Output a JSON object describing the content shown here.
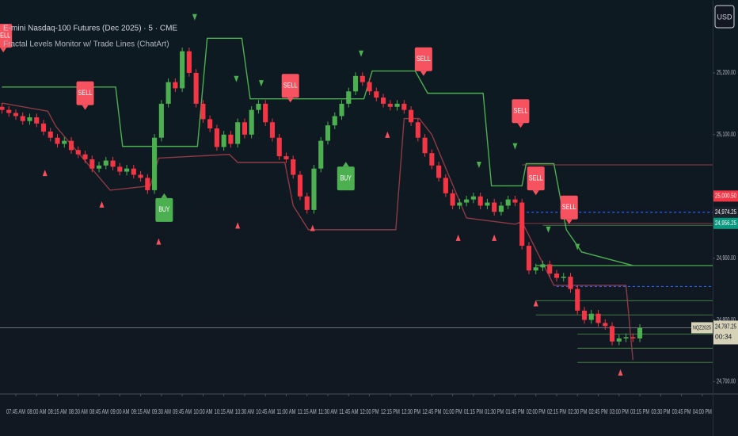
{
  "chart_data": {
    "type": "candlestick",
    "title": "E-mini Nasdaq-100 Futures (Dec 2025) · 5 · CME",
    "subtitle": "Fractal Levels Monitor w/ Trade Lines (ChatArt)",
    "currency": "USD",
    "up_color": "#4caf50",
    "down_color": "#f23645",
    "x": [
      455,
      460,
      465,
      470,
      475,
      480,
      485,
      490,
      495,
      500,
      505,
      510,
      515,
      520,
      525,
      530,
      535,
      540,
      545,
      550,
      555,
      560,
      565,
      570,
      575,
      580,
      585,
      590,
      595,
      600,
      605,
      610,
      615,
      620,
      625,
      630,
      635,
      640,
      645,
      650,
      655,
      660,
      665,
      670,
      675,
      680,
      685,
      690,
      695,
      700,
      705,
      710,
      715,
      720,
      725,
      730,
      735,
      740,
      745,
      750,
      755,
      760,
      765,
      770,
      775,
      780,
      785,
      790,
      795,
      800,
      805,
      810,
      815,
      820,
      825,
      830,
      835,
      840,
      845,
      850,
      855,
      860,
      865,
      870,
      875,
      880,
      885,
      890,
      895,
      900,
      905,
      910,
      915
    ],
    "open": [
      25145,
      25140,
      25135,
      25130,
      25122,
      25128,
      25118,
      25105,
      25095,
      25085,
      25090,
      25075,
      25068,
      25060,
      25045,
      25050,
      25058,
      25048,
      25040,
      25045,
      25035,
      25030,
      25010,
      25095,
      25150,
      25185,
      25175,
      25235,
      25200,
      25150,
      25125,
      25110,
      25080,
      25100,
      25085,
      25120,
      25100,
      25140,
      25150,
      25120,
      25095,
      25065,
      25060,
      25035,
      25000,
      24978,
      25045,
      25090,
      25115,
      25130,
      25150,
      25170,
      25195,
      25185,
      25170,
      25160,
      25150,
      25145,
      25150,
      25140,
      25120,
      25095,
      25070,
      25050,
      25030,
      25005,
      24985,
      24990,
      24995,
      25000,
      24985,
      24990,
      24975,
      24985,
      24995,
      24990,
      24920,
      24880,
      24885,
      24890,
      24875,
      24868,
      24870,
      24850,
      24815,
      24800,
      24810,
      24795,
      24790,
      24765,
      24770,
      24772,
      24770
    ],
    "high": [
      25151,
      25146,
      25141,
      25136,
      25134,
      25134,
      25124,
      25111,
      25101,
      25096,
      25096,
      25081,
      25074,
      25066,
      25056,
      25064,
      25064,
      25054,
      25051,
      25051,
      25041,
      25036,
      25101,
      25156,
      25191,
      25191,
      25241,
      25241,
      25206,
      25156,
      25131,
      25116,
      25106,
      25106,
      25126,
      25126,
      25146,
      25156,
      25156,
      25126,
      25101,
      25071,
      25066,
      25041,
      25006,
      25051,
      25096,
      25121,
      25136,
      25156,
      25176,
      25201,
      25201,
      25191,
      25176,
      25166,
      25156,
      25156,
      25156,
      25146,
      25126,
      25101,
      25076,
      25056,
      25036,
      25011,
      24996,
      25001,
      25006,
      25006,
      24996,
      24996,
      24991,
      25001,
      25001,
      24996,
      24926,
      24891,
      24896,
      24896,
      24881,
      24876,
      24876,
      24856,
      24821,
      24816,
      24816,
      24801,
      24796,
      24776,
      24778,
      24778,
      24793
    ],
    "low": [
      25134,
      25129,
      25124,
      25116,
      25116,
      25112,
      25099,
      25089,
      25079,
      25079,
      25069,
      25062,
      25054,
      25039,
      25039,
      25044,
      25042,
      25034,
      25034,
      25029,
      25024,
      25004,
      25004,
      25089,
      25144,
      25169,
      25169,
      25194,
      25144,
      25119,
      25104,
      25074,
      25074,
      25079,
      25079,
      25094,
      25094,
      25134,
      25114,
      25089,
      25059,
      25054,
      25029,
      24994,
      24972,
      24972,
      25039,
      25084,
      25109,
      25124,
      25144,
      25164,
      25179,
      25164,
      25154,
      25144,
      25139,
      25139,
      25134,
      25114,
      25089,
      25064,
      25044,
      25024,
      24999,
      24979,
      24979,
      24984,
      24989,
      24979,
      24979,
      24969,
      24969,
      24979,
      24984,
      24914,
      24874,
      24874,
      24879,
      24869,
      24862,
      24862,
      24844,
      24809,
      24794,
      24794,
      24789,
      24784,
      24759,
      24759,
      24764,
      24764,
      24764
    ],
    "close": [
      25140,
      25135,
      25130,
      25122,
      25128,
      25118,
      25105,
      25095,
      25085,
      25090,
      25075,
      25068,
      25060,
      25045,
      25050,
      25058,
      25048,
      25040,
      25045,
      25035,
      25030,
      25010,
      25095,
      25150,
      25185,
      25175,
      25235,
      25200,
      25150,
      25125,
      25110,
      25080,
      25100,
      25085,
      25120,
      25100,
      25140,
      25150,
      25120,
      25095,
      25065,
      25060,
      25035,
      25000,
      24978,
      25045,
      25090,
      25115,
      25130,
      25150,
      25170,
      25195,
      25185,
      25170,
      25160,
      25150,
      25145,
      25150,
      25140,
      25120,
      25095,
      25070,
      25050,
      25030,
      25005,
      24985,
      24990,
      24995,
      25000,
      24985,
      24990,
      24975,
      24985,
      24995,
      24990,
      24920,
      24880,
      24885,
      24890,
      24875,
      24868,
      24870,
      24850,
      24815,
      24800,
      24810,
      24795,
      24790,
      24765,
      24770,
      24772,
      24770,
      24787
    ],
    "lines": [
      {
        "color": "#4caf50",
        "x": [
          455,
          537,
          542,
          596,
          603,
          628,
          634,
          716,
          722,
          753,
          762,
          802,
          808,
          830,
          833,
          853,
          862,
          873,
          910
        ],
        "values": [
          25177,
          25177,
          25081,
          25081,
          25256,
          25256,
          25158,
          25158,
          25203,
          25203,
          25167,
          25167,
          25017,
          25017,
          25053,
          25053,
          24946,
          24910,
          24888
        ]
      },
      {
        "color": "#8e3a44",
        "x": [
          455,
          488,
          494,
          533,
          562,
          568,
          619,
          625,
          659,
          665,
          676,
          739,
          745,
          756,
          765,
          790,
          825,
          830,
          853,
          905,
          910
        ],
        "values": [
          25151,
          25138,
          25113,
          25010,
          25017,
          25062,
          25068,
          25055,
          25055,
          24985,
          24946,
          24946,
          25126,
          25126,
          25100,
          24965,
          24955,
          24959,
          24856,
          24856,
          24735
        ]
      }
    ],
    "fractal_highs": {
      "color": "#4caf50",
      "x": [
        594,
        624,
        642,
        714,
        799,
        825,
        849,
        870
      ],
      "values": [
        25290,
        25190,
        25183,
        25231,
        25051,
        25081,
        24946,
        24918
      ]
    },
    "fractal_lows": {
      "color": "#f7525f",
      "x": [
        486,
        527,
        568,
        625,
        679,
        733,
        784,
        810,
        840,
        901
      ],
      "values": [
        25038,
        24987,
        24927,
        24953,
        24949,
        25100,
        24933,
        24933,
        24827,
        24715
      ]
    },
    "signals": [
      {
        "label": "SELL",
        "x": 456,
        "value": 25260,
        "color": "#f7525f"
      },
      {
        "label": "SELL",
        "x": 515,
        "value": 25167,
        "color": "#f7525f"
      },
      {
        "label": "BUY",
        "x": 572,
        "value": 24978,
        "color": "#4caf50"
      },
      {
        "label": "SELL",
        "x": 663,
        "value": 25179,
        "color": "#f7525f"
      },
      {
        "label": "BUY",
        "x": 703,
        "value": 25029,
        "color": "#4caf50"
      },
      {
        "label": "SELL",
        "x": 759,
        "value": 25222,
        "color": "#f7525f"
      },
      {
        "label": "SELL",
        "x": 829,
        "value": 25138,
        "color": "#f7525f"
      },
      {
        "label": "SELL",
        "x": 840,
        "value": 25029,
        "color": "#f7525f"
      },
      {
        "label": "SELL",
        "x": 864,
        "value": 24982,
        "color": "#f7525f"
      }
    ],
    "levels": [
      {
        "x": 830,
        "value": 25051,
        "color": "#7a3440",
        "dashed": false
      },
      {
        "x": 830,
        "value": 24974.25,
        "color": "#2962ff",
        "dashed": true
      },
      {
        "x": 830,
        "value": 24956.25,
        "color": "#7a3440",
        "dashed": false
      },
      {
        "x": 845,
        "value": 24953,
        "color": "#3d6b40",
        "dashed": false
      },
      {
        "x": 840,
        "value": 24888,
        "color": "#4caf50",
        "dashed": false
      },
      {
        "x": 855,
        "value": 24854,
        "color": "#2962ff",
        "dashed": true
      },
      {
        "x": 840,
        "value": 24831,
        "color": "#3d6b40",
        "dashed": false
      },
      {
        "x": 840,
        "value": 24808,
        "color": "#3d6b40",
        "dashed": false
      },
      {
        "x": 870,
        "value": 24777,
        "color": "#3d6b40",
        "dashed": false
      },
      {
        "x": 870,
        "value": 24754,
        "color": "#3d6b40",
        "dashed": false
      },
      {
        "x": 870,
        "value": 24731,
        "color": "#3d6b40",
        "dashed": false
      }
    ],
    "price_labels": [
      {
        "value": 25000.5,
        "label": "25,000.50",
        "color": "#f23645"
      },
      {
        "value": 24974.25,
        "label": "24,974.25",
        "color": "#1e222d"
      },
      {
        "value": 24956.25,
        "label": "24,956.25",
        "color": "#089981"
      }
    ],
    "last_price": {
      "value": 24787.25,
      "label": "24,787.25",
      "symbol": "NQZ2025",
      "countdown": "00:34"
    },
    "xlim": [
      453.6,
      967.5
    ],
    "xticks": [
      {
        "value": 465,
        "label": "07:45 AM"
      },
      {
        "value": 480,
        "label": "08:00 AM"
      },
      {
        "value": 495,
        "label": "08:15 AM"
      },
      {
        "value": 510,
        "label": "08:30 AM"
      },
      {
        "value": 525,
        "label": "08:45 AM"
      },
      {
        "value": 540,
        "label": "09:00 AM"
      },
      {
        "value": 555,
        "label": "09:15 AM"
      },
      {
        "value": 570,
        "label": "09:30 AM"
      },
      {
        "value": 585,
        "label": "09:45 AM"
      },
      {
        "value": 600,
        "label": "10:00 AM"
      },
      {
        "value": 615,
        "label": "10:15 AM"
      },
      {
        "value": 630,
        "label": "10:30 AM"
      },
      {
        "value": 645,
        "label": "10:45 AM"
      },
      {
        "value": 660,
        "label": "11:00 AM"
      },
      {
        "value": 675,
        "label": "11:15 AM"
      },
      {
        "value": 690,
        "label": "11:30 AM"
      },
      {
        "value": 705,
        "label": "11:45 AM"
      },
      {
        "value": 720,
        "label": "12:00 PM"
      },
      {
        "value": 735,
        "label": "12:15 PM"
      },
      {
        "value": 750,
        "label": "12:30 PM"
      },
      {
        "value": 765,
        "label": "12:45 PM"
      },
      {
        "value": 780,
        "label": "01:00 PM"
      },
      {
        "value": 795,
        "label": "01:15 PM"
      },
      {
        "value": 810,
        "label": "01:30 PM"
      },
      {
        "value": 825,
        "label": "01:45 PM"
      },
      {
        "value": 840,
        "label": "02:00 PM"
      },
      {
        "value": 855,
        "label": "02:15 PM"
      },
      {
        "value": 870,
        "label": "02:30 PM"
      },
      {
        "value": 885,
        "label": "02:45 PM"
      },
      {
        "value": 900,
        "label": "03:00 PM"
      },
      {
        "value": 915,
        "label": "03:15 PM"
      },
      {
        "value": 930,
        "label": "03:30 PM"
      },
      {
        "value": 945,
        "label": "03:45 PM"
      },
      {
        "value": 960,
        "label": "04:00 PM"
      }
    ],
    "ylim": [
      24680,
      25318
    ],
    "yticks": [
      {
        "value": 24700,
        "label": "24,700.00"
      },
      {
        "value": 24800,
        "label": "24,800.00"
      },
      {
        "value": 24900,
        "label": "24,900.00"
      },
      {
        "value": 25000,
        "label": "25,000.00"
      },
      {
        "value": 25100,
        "label": "25,100.00"
      },
      {
        "value": 25200,
        "label": "25,200.00"
      }
    ]
  }
}
